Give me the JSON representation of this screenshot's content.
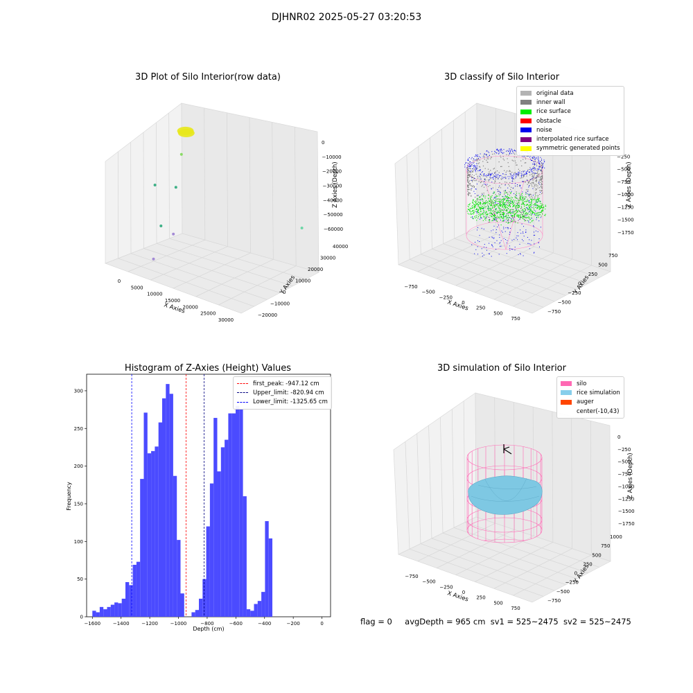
{
  "figure": {
    "title": "DJHNR02 2025-05-27 03:20:53",
    "status": {
      "flag": "flag = 0",
      "avg": "avgDepth = 965 cm",
      "sv1": "sv1 = 525~2475",
      "sv2": "sv2 = 525~2475"
    }
  },
  "chart_data": [
    {
      "type": "scatter",
      "title": "3D Plot of Silo Interior(row data)",
      "xlabel": "X Axies",
      "ylabel": "Y Axies",
      "zlabel": "Z Axies (Depth)",
      "x_ticks": [
        "0",
        "5000",
        "10000",
        "15000",
        "20000",
        "25000",
        "30000"
      ],
      "y_ticks": [
        "−20000",
        "−10000",
        "0",
        "10000",
        "20000",
        "30000",
        "40000"
      ],
      "z_ticks": [
        "0",
        "−10000",
        "−20000",
        "−30000",
        "−40000",
        "−50000",
        "−60000"
      ],
      "series": [
        {
          "color": "#e8e81a",
          "points": [
            {
              "x": 1000,
              "y": 35000,
              "z": -2000
            },
            {
              "x": 1500,
              "y": 34000,
              "z": -2500
            }
          ]
        },
        {
          "color": "#7ed957",
          "points": [
            {
              "x": 1500,
              "y": 30000,
              "z": -13000
            }
          ]
        },
        {
          "color": "#2aa87a",
          "points": [
            {
              "x": 2500,
              "y": 22000,
              "z": -28000
            },
            {
              "x": -2000,
              "y": 20000,
              "z": -30000
            },
            {
              "x": 3000,
              "y": 8000,
              "z": -45000
            }
          ]
        },
        {
          "color": "#5fd4a0",
          "points": [
            {
              "x": 29000,
              "y": 36000,
              "z": -32000
            }
          ]
        },
        {
          "color": "#9b7fd1",
          "points": [
            {
              "x": 6000,
              "y": 8000,
              "z": -47000
            },
            {
              "x": 5000,
              "y": -5000,
              "z": -58000
            }
          ]
        }
      ]
    },
    {
      "type": "scatter",
      "title": "3D classify of Silo Interior",
      "xlabel": "X Axies",
      "ylabel": "Y Axies",
      "zlabel": "Z Axies (Depth)",
      "x_ticks": [
        "−750",
        "−500",
        "−250",
        "0",
        "250",
        "500",
        "750"
      ],
      "y_ticks": [
        "−750",
        "−500",
        "−250",
        "0",
        "250",
        "500",
        "750"
      ],
      "z_ticks": [
        "0",
        "−250",
        "−500",
        "−750",
        "−1000",
        "−1250",
        "−1500",
        "−1750"
      ],
      "legend": [
        {
          "label": "original data",
          "color": "#b3b3b3"
        },
        {
          "label": "inner wall",
          "color": "#808080"
        },
        {
          "label": "rice surface",
          "color": "#00ee00"
        },
        {
          "label": "obstacle",
          "color": "#ff0000"
        },
        {
          "label": "noise",
          "color": "#0000ee"
        },
        {
          "label": "interpolated rice surface",
          "color": "#800080"
        },
        {
          "label": "symmetric generated points",
          "color": "#ffff00"
        }
      ]
    },
    {
      "type": "bar",
      "title": "Histogram of Z-Axies (Height) Values",
      "xlabel": "Depth (cm)",
      "ylabel": "Frequency",
      "xlim": [
        -1640,
        60
      ],
      "ylim": [
        0,
        322
      ],
      "x_ticks": [
        -1600,
        -1400,
        -1200,
        -1000,
        -800,
        -600,
        -400,
        -200,
        0
      ],
      "x_tick_labels": [
        "−1600",
        "−1400",
        "−1200",
        "−1000",
        "−800",
        "−600",
        "−400",
        "−200",
        "0"
      ],
      "y_ticks": [
        0,
        50,
        100,
        150,
        200,
        250,
        300
      ],
      "bin_start": -1600,
      "bin_width": 25.6,
      "values": [
        8,
        6,
        13,
        10,
        13,
        16,
        19,
        18,
        24,
        46,
        42,
        69,
        73,
        183,
        271,
        217,
        220,
        226,
        258,
        290,
        309,
        296,
        187,
        102,
        31,
        0,
        0,
        6,
        9,
        24,
        50,
        120,
        177,
        264,
        193,
        225,
        235,
        270,
        270,
        280,
        276,
        160,
        10,
        8,
        17,
        21,
        33,
        127,
        104
      ],
      "bar_color": "#4b4bff",
      "legend": [
        {
          "label": "first_peak: -947.12 cm",
          "color": "#ff0000"
        },
        {
          "label": "Upper_limit: -820.94 cm",
          "color": "#000080"
        },
        {
          "label": "Lower_limit: -1325.65 cm",
          "color": "#0000ff"
        }
      ],
      "vlines": [
        {
          "x": -947.12,
          "color": "#ff0000"
        },
        {
          "x": -820.94,
          "color": "#000080"
        },
        {
          "x": -1325.65,
          "color": "#0000ff"
        }
      ]
    },
    {
      "type": "area",
      "title": "3D simulation of Silo Interior",
      "xlabel": "X Axies",
      "ylabel": "Y Axies",
      "zlabel": "Z Axies (Depth)",
      "x_ticks": [
        "−750",
        "−500",
        "−250",
        "0",
        "250",
        "500",
        "750"
      ],
      "y_ticks": [
        "−750",
        "−500",
        "−250",
        "0",
        "250",
        "500",
        "750",
        "1000"
      ],
      "z_ticks": [
        "0",
        "−250",
        "−500",
        "−750",
        "−1000",
        "−1250",
        "−1500",
        "−1750"
      ],
      "legend": [
        {
          "label": "silo",
          "color": "#ff69b4"
        },
        {
          "label": "rice simulation",
          "color": "#87ceeb"
        },
        {
          "label": "auger",
          "color": "#ff4500"
        },
        {
          "label": "center(-10,43)",
          "color": ""
        }
      ]
    }
  ]
}
